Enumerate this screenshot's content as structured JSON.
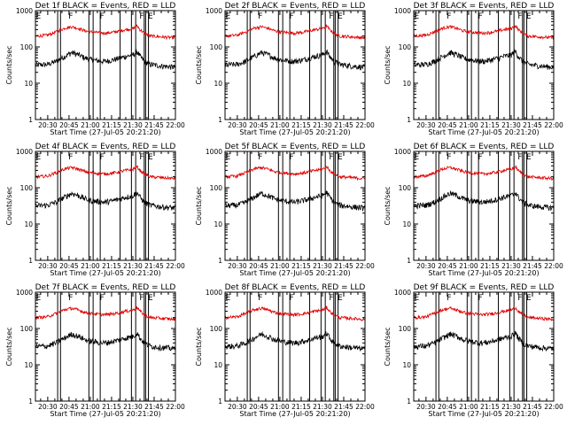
{
  "figure": {
    "background": "#ffffff",
    "colors": {
      "events": "#000000",
      "lld": "#e00000",
      "axes": "#000000"
    }
  },
  "chart_data": [
    {
      "type": "line",
      "detector": "1f",
      "title": "Det 1f BLACK = Events, RED = LLD"
    },
    {
      "type": "line",
      "detector": "2f",
      "title": "Det 2f BLACK = Events, RED = LLD"
    },
    {
      "type": "line",
      "detector": "3f",
      "title": "Det 3f BLACK = Events, RED = LLD"
    },
    {
      "type": "line",
      "detector": "4f",
      "title": "Det 4f BLACK = Events, RED = LLD"
    },
    {
      "type": "line",
      "detector": "5f",
      "title": "Det 5f BLACK = Events, RED = LLD"
    },
    {
      "type": "line",
      "detector": "6f",
      "title": "Det 6f BLACK = Events, RED = LLD"
    },
    {
      "type": "line",
      "detector": "7f",
      "title": "Det 7f BLACK = Events, RED = LLD"
    },
    {
      "type": "line",
      "detector": "8f",
      "title": "Det 8f BLACK = Events, RED = LLD"
    },
    {
      "type": "line",
      "detector": "9f",
      "title": "Det 9f BLACK = Events, RED = LLD"
    }
  ],
  "shared": {
    "xlabel": "Start Time (27-Jul-05 20:21:20)",
    "ylabel": "Counts/sec",
    "yscale": "log",
    "ylim": [
      1,
      1000
    ],
    "ytick_labels": [
      "1",
      "10",
      "100",
      "1000"
    ],
    "xlim": [
      "20:21:20",
      "22:00"
    ],
    "xtick_labels": [
      "20:30",
      "20:45",
      "21:00",
      "21:15",
      "21:30",
      "21:45",
      "22:00"
    ],
    "flag_markers": [
      {
        "label": "E",
        "time": "20:21"
      },
      {
        "label": "F",
        "time": "20:44"
      },
      {
        "label": "F",
        "time": "21:06"
      },
      {
        "label": "F",
        "time": "21:34"
      },
      {
        "label": "E",
        "time": "21:40"
      }
    ],
    "vertical_lines": [
      "20:37",
      "20:39",
      "20:59",
      "21:02",
      "21:07",
      "21:21",
      "21:29",
      "21:32",
      "21:38",
      "21:39",
      "21:41"
    ],
    "series": [
      {
        "name": "Events",
        "color": "#000000",
        "x": [
          "20:22",
          "20:30",
          "20:36",
          "20:42",
          "20:47",
          "20:52",
          "20:56",
          "21:00",
          "21:05",
          "21:10",
          "21:15",
          "21:20",
          "21:25",
          "21:30",
          "21:33",
          "21:35",
          "21:38",
          "21:42",
          "21:50",
          "21:58"
        ],
        "y": [
          32,
          33,
          40,
          55,
          70,
          60,
          50,
          45,
          42,
          40,
          43,
          48,
          55,
          60,
          75,
          55,
          40,
          33,
          30,
          28
        ]
      },
      {
        "name": "LLD",
        "color": "#e00000",
        "x": [
          "20:22",
          "20:30",
          "20:36",
          "20:42",
          "20:47",
          "20:52",
          "20:56",
          "21:00",
          "21:05",
          "21:10",
          "21:15",
          "21:20",
          "21:25",
          "21:30",
          "21:33",
          "21:35",
          "21:38",
          "21:42",
          "21:50",
          "21:58"
        ],
        "y": [
          200,
          210,
          260,
          330,
          360,
          320,
          280,
          260,
          250,
          240,
          250,
          270,
          300,
          320,
          380,
          300,
          240,
          200,
          190,
          180
        ]
      }
    ]
  }
}
